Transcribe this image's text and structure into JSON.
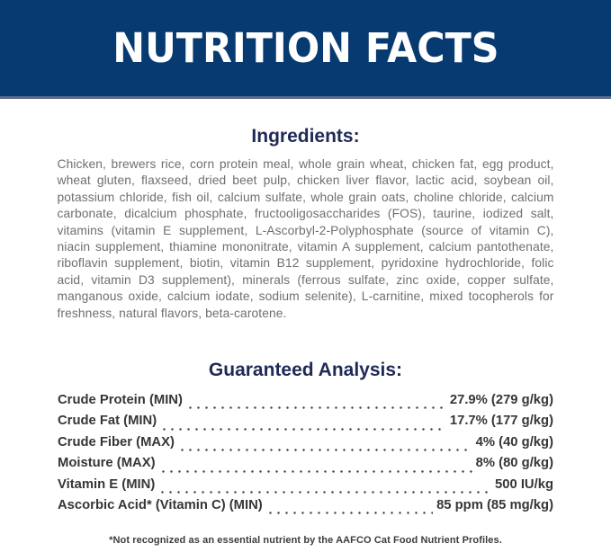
{
  "header": {
    "title": "NUTRITION FACTS"
  },
  "ingredients": {
    "heading": "Ingredients:",
    "text": "Chicken, brewers rice, corn protein meal, whole grain wheat, chicken fat, egg product, wheat gluten, flaxseed, dried beet pulp, chicken liver flavor, lactic acid, soybean oil, potassium chloride, fish oil, calcium sulfate, whole grain oats, choline chloride, calcium carbonate, dicalcium phosphate, fructooligosaccharides (FOS), taurine, iodized salt, vitamins (vitamin E supplement, L-Ascorbyl-2-Polyphosphate (source of vitamin C), niacin supplement, thiamine mononitrate, vitamin A supplement, calcium pantothenate, riboflavin supplement, biotin, vitamin B12 supplement, pyridoxine hydrochloride, folic acid, vitamin D3 supplement), minerals (ferrous sulfate, zinc oxide, copper sulfate, manganous oxide, calcium iodate, sodium selenite), L-carnitine, mixed tocopherols for freshness, natural flavors, beta-carotene."
  },
  "analysis": {
    "heading": "Guaranteed Analysis:",
    "rows": [
      {
        "label": "Crude Protein (MIN)",
        "value": "27.9% (279 g/kg)"
      },
      {
        "label": "Crude Fat (MIN)",
        "value": "17.7% (177 g/kg)"
      },
      {
        "label": "Crude Fiber (MAX)",
        "value": "4% (40 g/kg)"
      },
      {
        "label": "Moisture (MAX)",
        "value": "8% (80 g/kg)"
      },
      {
        "label": "Vitamin E (MIN)",
        "value": "500 IU/kg"
      },
      {
        "label": "Ascorbic Acid* (Vitamin C) (MIN)",
        "value": "85 ppm (85 mg/kg)"
      }
    ]
  },
  "footnote": "*Not recognized as an essential nutrient by the AAFCO Cat Food Nutrient Profiles.",
  "colors": {
    "header_bg": "#083a72",
    "header_text": "#ffffff",
    "header_border": "#5c6b8e",
    "heading_navy": "#1f2a56",
    "ingredients_text": "#6f6f6f",
    "analysis_text": "#363636",
    "footnote_text": "#3d3d3d",
    "page_bg": "#ffffff"
  }
}
